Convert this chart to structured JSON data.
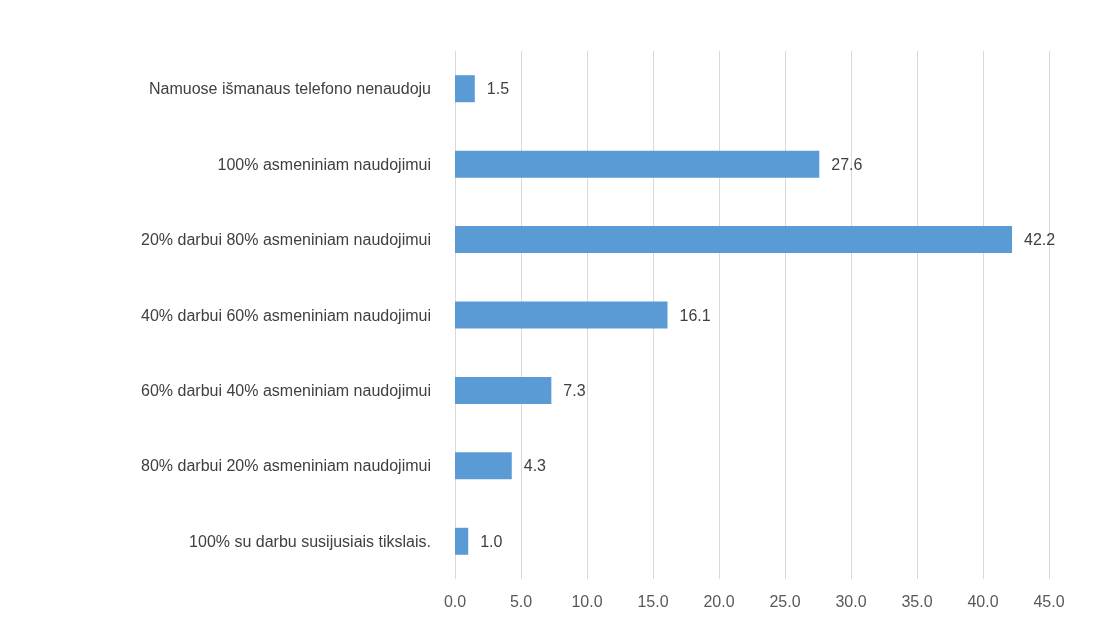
{
  "chart_data": {
    "type": "bar",
    "orientation": "horizontal",
    "categories": [
      "Namuose išmanaus telefono nenaudoju",
      "100% asmeniniam naudojimui",
      "20% darbui 80% asmeniniam naudojimui",
      "40% darbui 60% asmeniniam naudojimui",
      "60% darbui 40% asmeniniam naudojimui",
      "80% darbui 20% asmeniniam naudojimui",
      "100% su darbu susijusiais tikslais."
    ],
    "values": [
      1.5,
      27.6,
      42.2,
      16.1,
      7.3,
      4.3,
      1.0
    ],
    "value_labels": [
      "1.5",
      "27.6",
      "42.2",
      "16.1",
      "7.3",
      "4.3",
      "1.0"
    ],
    "color": "#5b9bd5",
    "xlim": [
      0,
      45
    ],
    "xticks": [
      {
        "value": 0,
        "label": "0.0"
      },
      {
        "value": 5,
        "label": "5.0"
      },
      {
        "value": 10,
        "label": "10.0"
      },
      {
        "value": 15,
        "label": "15.0"
      },
      {
        "value": 20,
        "label": "20.0"
      },
      {
        "value": 25,
        "label": "25.0"
      },
      {
        "value": 30,
        "label": "30.0"
      },
      {
        "value": 35,
        "label": "35.0"
      },
      {
        "value": 40,
        "label": "40.0"
      },
      {
        "value": 45,
        "label": "45.0"
      }
    ],
    "grid": "x"
  }
}
